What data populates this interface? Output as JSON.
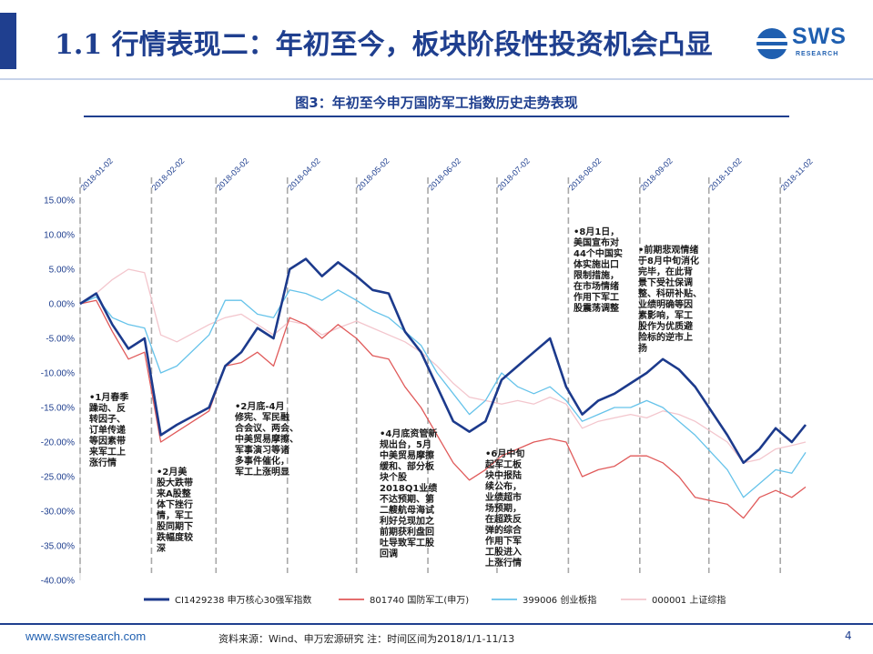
{
  "header": {
    "title": "1.1 行情表现二：年初至今，板块阶段性投资机会凸显",
    "logo_text": "SWS",
    "logo_sub": "RESEARCH"
  },
  "figure_title": "图3：年初至今申万国防军工指数历史走势表现",
  "colors": {
    "series1": "#1c3a8c",
    "series2": "#e05a5a",
    "series3": "#66c3ea",
    "series4": "#f3c6cd",
    "accent": "#1f3f8f"
  },
  "chart_data": {
    "type": "line",
    "ylim": [
      -40,
      15
    ],
    "y_ticks": [
      "15.00%",
      "10.00%",
      "5.00%",
      "0.00%",
      "-5.00%",
      "-10.00%",
      "-15.00%",
      "-20.00%",
      "-25.00%",
      "-30.00%",
      "-35.00%",
      "-40.00%"
    ],
    "month_markers": [
      "2018-01-02",
      "2018-02-02",
      "2018-03-02",
      "2018-04-02",
      "2018-05-02",
      "2018-06-02",
      "2018-07-02",
      "2018-08-02",
      "2018-09-02",
      "2018-10-02",
      "2018-11-02"
    ],
    "x": [
      "2018-01-02",
      "2018-01-09",
      "2018-01-16",
      "2018-01-23",
      "2018-01-30",
      "2018-02-06",
      "2018-02-13",
      "2018-02-27",
      "2018-03-06",
      "2018-03-13",
      "2018-03-20",
      "2018-03-27",
      "2018-04-03",
      "2018-04-10",
      "2018-04-17",
      "2018-04-24",
      "2018-05-02",
      "2018-05-09",
      "2018-05-16",
      "2018-05-23",
      "2018-05-30",
      "2018-06-06",
      "2018-06-13",
      "2018-06-20",
      "2018-06-27",
      "2018-07-04",
      "2018-07-11",
      "2018-07-18",
      "2018-07-25",
      "2018-08-01",
      "2018-08-08",
      "2018-08-15",
      "2018-08-22",
      "2018-08-29",
      "2018-09-05",
      "2018-09-12",
      "2018-09-19",
      "2018-09-26",
      "2018-10-10",
      "2018-10-17",
      "2018-10-24",
      "2018-10-31",
      "2018-11-07",
      "2018-11-13"
    ],
    "series": [
      {
        "name": "CI1429238 申万核心30强军指数",
        "values": [
          0,
          1.5,
          -3.0,
          -6.5,
          -5.0,
          -19.0,
          -17.5,
          -15.0,
          -9.0,
          -7.0,
          -3.5,
          -5.0,
          5.0,
          6.5,
          4.0,
          6.0,
          4.0,
          2.0,
          1.5,
          -4.0,
          -7.0,
          -12.0,
          -17.0,
          -18.5,
          -17.0,
          -11.0,
          -9.0,
          -7.0,
          -5.0,
          -12.0,
          -16.0,
          -14.0,
          -13.0,
          -11.5,
          -10.0,
          -8.0,
          -9.5,
          -12.0,
          -19.0,
          -23.0,
          -21.0,
          -18.0,
          -20.0,
          -17.5
        ]
      },
      {
        "name": "801740 国防军工(申万)",
        "values": [
          0,
          0.5,
          -4.0,
          -8.0,
          -7.0,
          -20.0,
          -18.5,
          -15.5,
          -9.0,
          -8.5,
          -7.0,
          -9.0,
          -2.0,
          -3.0,
          -5.0,
          -3.0,
          -5.0,
          -7.5,
          -8.0,
          -12.0,
          -15.0,
          -19.0,
          -23.0,
          -25.5,
          -24.0,
          -22.0,
          -21.0,
          -20.0,
          -19.5,
          -20.0,
          -25.0,
          -24.0,
          -23.5,
          -22.0,
          -22.0,
          -23.0,
          -25.0,
          -28.0,
          -29.0,
          -31.0,
          -28.0,
          -27.0,
          -28.0,
          -26.5
        ]
      },
      {
        "name": "399006 创业板指",
        "values": [
          0,
          1.0,
          -2.0,
          -3.0,
          -3.5,
          -10.0,
          -9.0,
          -4.5,
          0.5,
          0.5,
          -1.5,
          -2.0,
          2.0,
          1.5,
          0.5,
          2.0,
          0.5,
          -1.0,
          -2.0,
          -4.0,
          -6.0,
          -10.0,
          -13.0,
          -16.0,
          -14.0,
          -10.0,
          -12.0,
          -13.0,
          -12.0,
          -14.0,
          -17.0,
          -16.0,
          -15.0,
          -15.0,
          -14.0,
          -15.0,
          -17.0,
          -19.0,
          -24.0,
          -28.0,
          -26.0,
          -24.0,
          -24.5,
          -21.5
        ]
      },
      {
        "name": "000001 上证综指",
        "values": [
          0,
          1.5,
          3.5,
          5.0,
          4.5,
          -4.5,
          -5.5,
          -3.0,
          -2.0,
          -1.5,
          -3.0,
          -4.5,
          -2.5,
          -3.0,
          -4.5,
          -3.5,
          -2.5,
          -3.5,
          -4.5,
          -5.5,
          -7.0,
          -9.0,
          -11.5,
          -13.5,
          -14.0,
          -14.5,
          -14.0,
          -14.5,
          -13.5,
          -14.5,
          -18.0,
          -17.0,
          -16.5,
          -16.0,
          -16.5,
          -15.5,
          -16.0,
          -17.0,
          -20.0,
          -23.0,
          -22.5,
          -21.0,
          -20.5,
          -20.0
        ]
      }
    ],
    "annotations": [
      {
        "name": "jan",
        "lines": [
          "•1月春季",
          "躁动、反",
          "转因子、",
          "订单传递",
          "等因素带",
          "来军工上",
          "涨行情"
        ]
      },
      {
        "name": "feb",
        "lines": [
          "•2月美",
          "股大跌带",
          "来A股整",
          "体下挫行",
          "情，军工",
          "股同期下",
          "跌幅度较",
          "深"
        ]
      },
      {
        "name": "mar",
        "lines": [
          "•2月底-4月",
          "修宪、军民融",
          "合会议、两会、",
          "中美贸易摩擦、",
          "军事演习等诸",
          "多事件催化，",
          "军工上涨明显"
        ]
      },
      {
        "name": "apr",
        "lines": [
          "•4月底资管新",
          "规出台，5月",
          "中美贸易摩擦",
          "缓和、部分板",
          "块个股",
          "2018Q1业绩",
          "不达预期、第",
          "二艘航母海试",
          "利好兑现加之",
          "前期获利盘回",
          "吐导致军工股",
          "回调"
        ]
      },
      {
        "name": "jun",
        "lines": [
          "•6月中旬",
          "起军工板",
          "块中报陆",
          "续公布，",
          "业绩超市",
          "场预期，",
          "在超跌反",
          "弹的综合",
          "作用下军",
          "工股进入",
          "上涨行情"
        ]
      },
      {
        "name": "aug",
        "lines": [
          "•8月1日，",
          "美国宣布对",
          "44个中国实",
          "体实施出口",
          "限制措施，",
          "在市场情绪",
          "作用下军工",
          "股震荡调整"
        ]
      },
      {
        "name": "sep",
        "lines": [
          "•前期悲观情绪",
          "于8月中旬消化",
          "完毕，在此背",
          "景下受社保调",
          "整、科研补贴、",
          "业绩明确等因",
          "素影响，军工",
          "股作为优质避",
          "险标的逆市上",
          "扬"
        ]
      }
    ]
  },
  "footer": {
    "url": "www.swsresearch.com",
    "source": "资料来源：Wind、申万宏源研究 注：时间区间为2018/1/1-11/13",
    "page": "4"
  }
}
